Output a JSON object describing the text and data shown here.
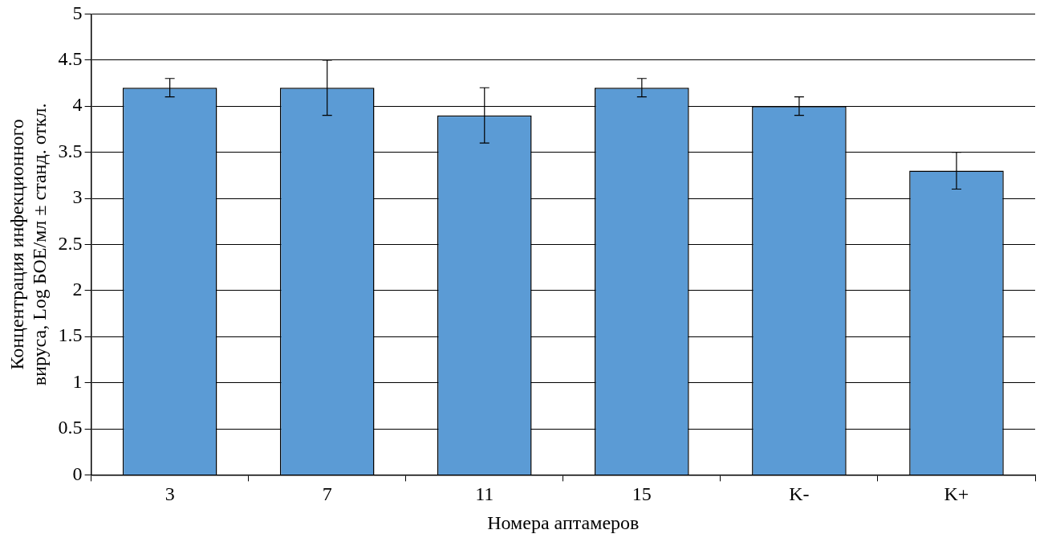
{
  "chart_data": {
    "type": "bar",
    "xlabel": "Номера аптамеров",
    "ylabel": "Концентрация инфекционного вируса, Log БОЕ/мл ± станд. откл.",
    "categories": [
      "3",
      "7",
      "11",
      "15",
      "K-",
      "K+"
    ],
    "values": [
      4.2,
      4.2,
      3.9,
      4.2,
      4.0,
      3.3
    ],
    "errors": [
      0.1,
      0.3,
      0.3,
      0.1,
      0.1,
      0.2
    ],
    "color": "#5b9bd5",
    "ylim": [
      0,
      5
    ],
    "yticks": [
      0,
      0.5,
      1,
      1.5,
      2,
      2.5,
      3,
      3.5,
      4,
      4.5,
      5
    ],
    "grid": "y"
  }
}
